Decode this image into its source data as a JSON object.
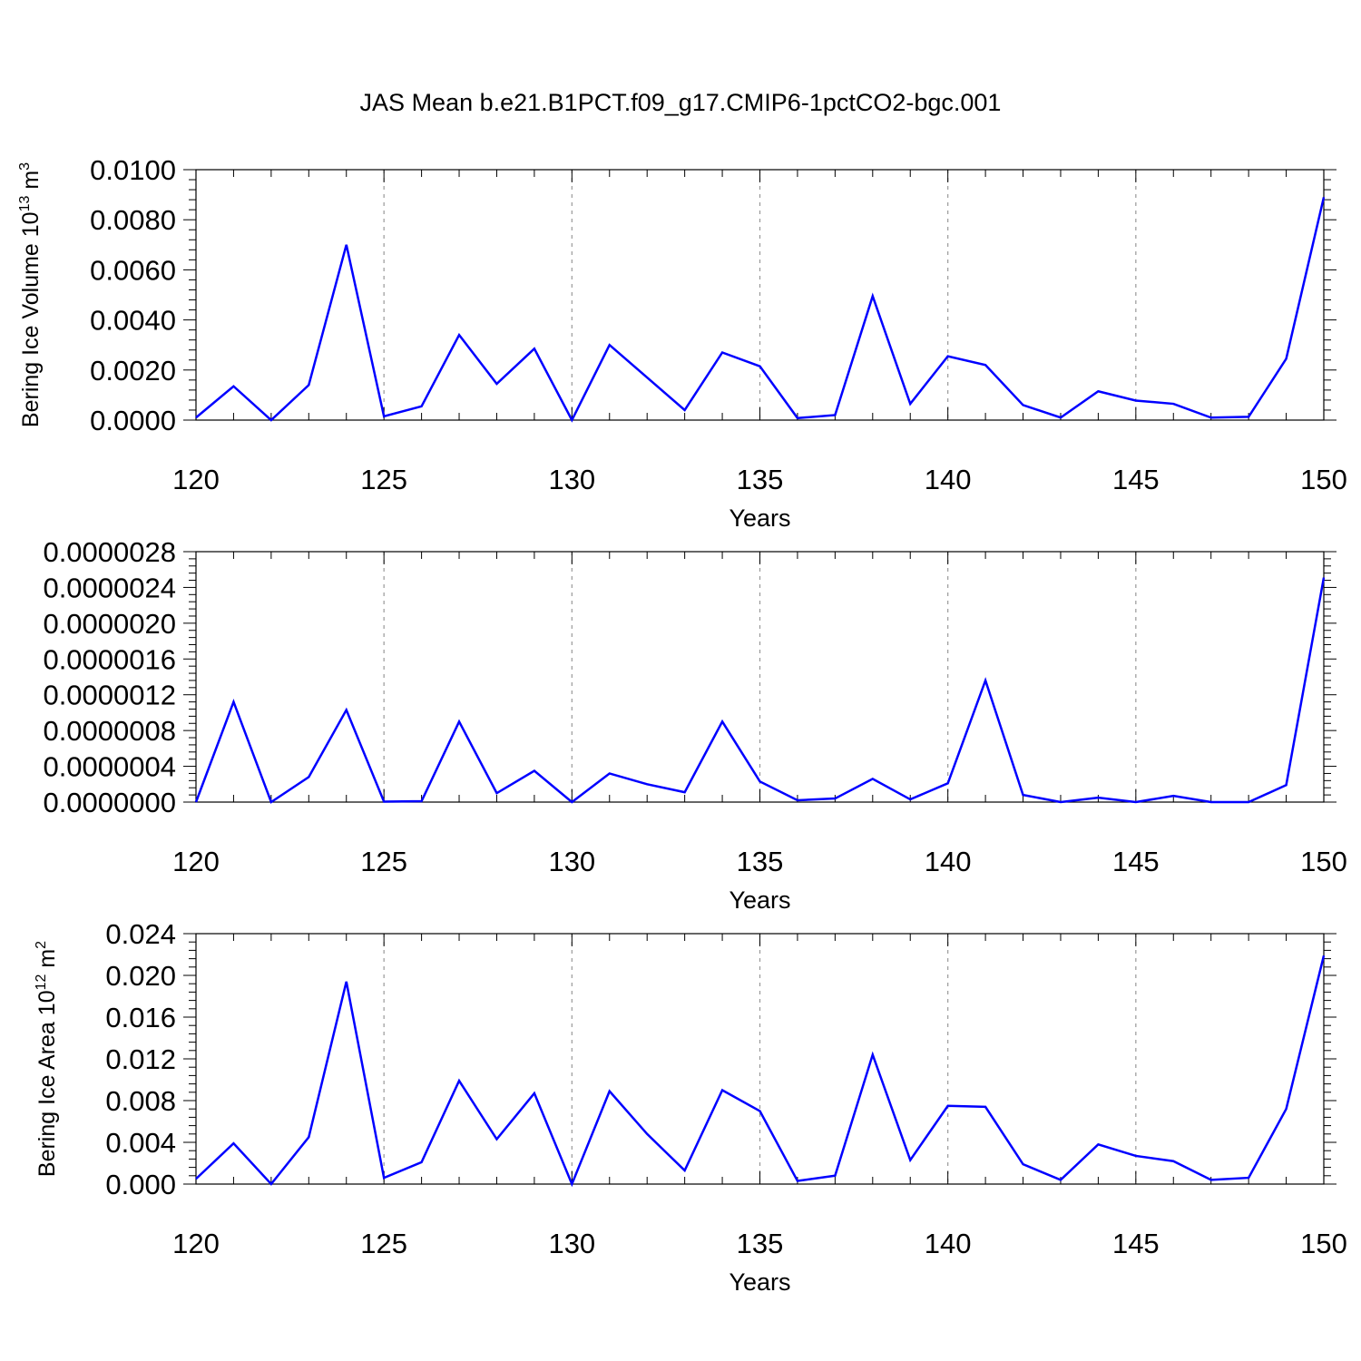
{
  "title": "JAS Mean b.e21.B1PCT.f09_g17.CMIP6-1pctCO2-bgc.001",
  "colors": {
    "line": "#0000ff",
    "axis": "#000000",
    "grid": "#999999"
  },
  "chart_data": [
    {
      "type": "line",
      "xlabel": "Years",
      "ylabel": "Bering Ice Volume 10",
      "ylabel_exp": "13",
      "ylabel_unit": " m",
      "ylabel_unit_exp": "3",
      "xlim": [
        120,
        150
      ],
      "ylim": [
        0,
        0.01
      ],
      "grid": "vertical dashed at major x ticks",
      "x_ticks": [
        "120",
        "125",
        "130",
        "135",
        "140",
        "145",
        "150"
      ],
      "y_ticks": [
        "0.0000",
        "0.0020",
        "0.0040",
        "0.0060",
        "0.0080",
        "0.0100"
      ],
      "x": [
        120,
        121,
        122,
        123,
        124,
        125,
        126,
        127,
        128,
        129,
        130,
        131,
        132,
        133,
        134,
        135,
        136,
        137,
        138,
        139,
        140,
        141,
        142,
        143,
        144,
        145,
        146,
        147,
        148,
        149,
        150
      ],
      "series": [
        {
          "values": [
            0.0001,
            0.00135,
            0.0,
            0.0014,
            0.007,
            0.00015,
            0.00055,
            0.0034,
            0.00145,
            0.00285,
            0.0,
            0.003,
            0.0017,
            0.0004,
            0.0027,
            0.00215,
            8e-05,
            0.0002,
            0.00495,
            0.00065,
            0.00255,
            0.0022,
            0.0006,
            0.0001,
            0.00115,
            0.00078,
            0.00065,
            0.0001,
            0.00013,
            0.00245,
            0.0089
          ]
        }
      ]
    },
    {
      "type": "line",
      "xlabel": "Years",
      "ylabel": "",
      "xlim": [
        120,
        150
      ],
      "ylim": [
        0,
        2.8e-06
      ],
      "grid": "vertical dashed at major x ticks",
      "x_ticks": [
        "120",
        "125",
        "130",
        "135",
        "140",
        "145",
        "150"
      ],
      "y_ticks": [
        "0.0000000",
        "0.0000004",
        "0.0000008",
        "0.0000012",
        "0.0000016",
        "0.0000020",
        "0.0000024",
        "0.0000028"
      ],
      "x": [
        120,
        121,
        122,
        123,
        124,
        125,
        126,
        127,
        128,
        129,
        130,
        131,
        132,
        133,
        134,
        135,
        136,
        137,
        138,
        139,
        140,
        141,
        142,
        143,
        144,
        145,
        146,
        147,
        148,
        149,
        150
      ],
      "series": [
        {
          "values": [
            0.0,
            1.12e-06,
            0.0,
            2.8e-07,
            1.03e-06,
            5e-09,
            1e-08,
            9e-07,
            1e-07,
            3.5e-07,
            0.0,
            3.2e-07,
            2e-07,
            1.1e-07,
            9e-07,
            2.3e-07,
            2e-08,
            4e-08,
            2.6e-07,
            3e-08,
            2.1e-07,
            1.36e-06,
            8e-08,
            0.0,
            5e-08,
            0.0,
            7e-08,
            0.0,
            0.0,
            1.9e-07,
            2.51e-06
          ]
        }
      ]
    },
    {
      "type": "line",
      "xlabel": "Years",
      "ylabel": "Bering Ice Area 10",
      "ylabel_exp": "12",
      "ylabel_unit": " m",
      "ylabel_unit_exp": "2",
      "xlim": [
        120,
        150
      ],
      "ylim": [
        0,
        0.024
      ],
      "grid": "vertical dashed at major x ticks",
      "x_ticks": [
        "120",
        "125",
        "130",
        "135",
        "140",
        "145",
        "150"
      ],
      "y_ticks": [
        "0.000",
        "0.004",
        "0.008",
        "0.012",
        "0.016",
        "0.020",
        "0.024"
      ],
      "x": [
        120,
        121,
        122,
        123,
        124,
        125,
        126,
        127,
        128,
        129,
        130,
        131,
        132,
        133,
        134,
        135,
        136,
        137,
        138,
        139,
        140,
        141,
        142,
        143,
        144,
        145,
        146,
        147,
        148,
        149,
        150
      ],
      "series": [
        {
          "values": [
            0.0005,
            0.0039,
            0.0,
            0.0045,
            0.0194,
            0.0006,
            0.0021,
            0.0099,
            0.0043,
            0.0087,
            0.0,
            0.0089,
            0.0048,
            0.0013,
            0.009,
            0.007,
            0.0003,
            0.0008,
            0.0124,
            0.0023,
            0.0075,
            0.0074,
            0.0019,
            0.0004,
            0.0038,
            0.0027,
            0.0022,
            0.0004,
            0.0006,
            0.0072,
            0.0219
          ]
        }
      ]
    }
  ]
}
